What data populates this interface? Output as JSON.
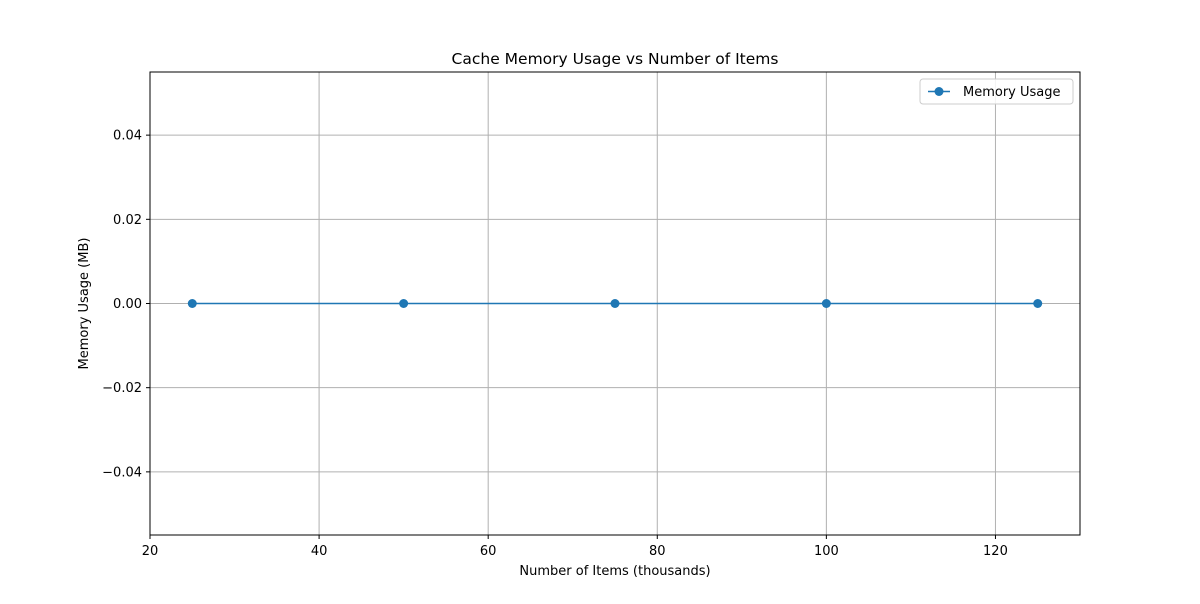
{
  "chart_data": {
    "type": "line",
    "title": "Cache Memory Usage vs Number of Items",
    "xlabel": "Number of Items (thousands)",
    "ylabel": "Memory Usage (MB)",
    "xlim": [
      20,
      130
    ],
    "ylim": [
      -0.055,
      0.055
    ],
    "xticks": [
      20,
      40,
      60,
      80,
      100,
      120
    ],
    "yticks": [
      -0.04,
      -0.02,
      0.0,
      0.02,
      0.04
    ],
    "xtick_labels": [
      "20",
      "40",
      "60",
      "80",
      "100",
      "120"
    ],
    "ytick_labels": [
      "−0.04",
      "−0.02",
      "0.00",
      "0.02",
      "0.04"
    ],
    "grid": true,
    "legend_position": "top-right",
    "series": [
      {
        "name": "Memory Usage",
        "color": "#1f77b4",
        "marker": "circle",
        "x": [
          25,
          50,
          75,
          100,
          125
        ],
        "y": [
          0.0,
          0.0,
          0.0,
          0.0,
          0.0
        ]
      }
    ]
  }
}
